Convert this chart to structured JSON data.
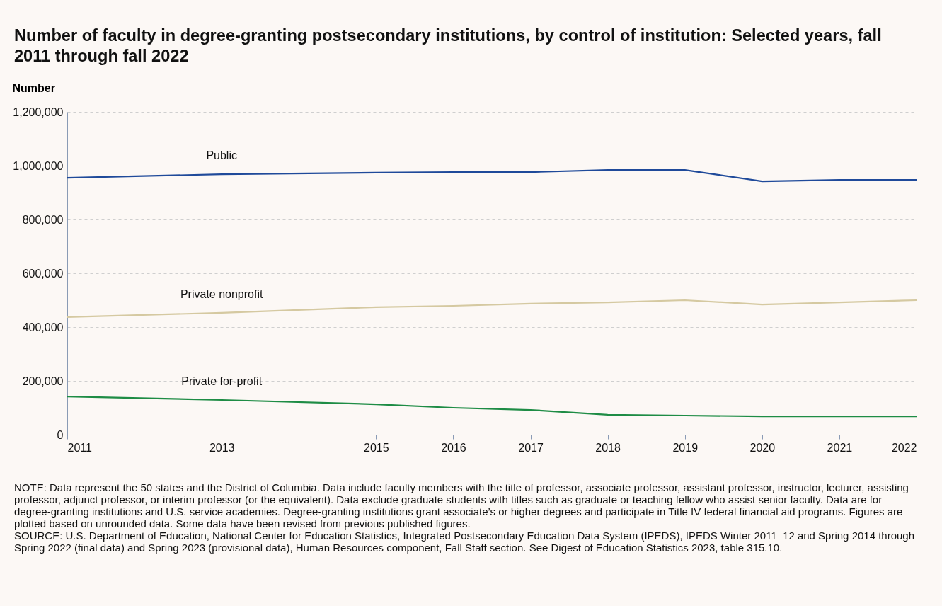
{
  "chart_data": {
    "type": "line",
    "title": "Number of faculty in degree-granting postsecondary institutions, by control of institution: Selected years, fall 2011 through fall 2022",
    "ylabel": "Number",
    "x": [
      2011,
      2013,
      2015,
      2016,
      2017,
      2018,
      2019,
      2020,
      2021,
      2022
    ],
    "series": [
      {
        "name": "Public",
        "color": "#1f4a9a",
        "values": [
          955000,
          968000,
          974000,
          976000,
          976000,
          984000,
          984000,
          942000,
          947000,
          947000
        ]
      },
      {
        "name": "Private nonprofit",
        "color": "#d5c9a1",
        "values": [
          437000,
          453000,
          474000,
          479000,
          487000,
          492000,
          500000,
          484000,
          492000,
          500000
        ]
      },
      {
        "name": "Private for-profit",
        "color": "#1e8c45",
        "values": [
          142000,
          129000,
          113000,
          100000,
          92000,
          74000,
          71000,
          68000,
          68000,
          68000
        ]
      }
    ],
    "xlim": [
      2011,
      2022
    ],
    "xticks": [
      2011,
      2013,
      2015,
      2016,
      2017,
      2018,
      2019,
      2020,
      2021,
      2022
    ],
    "ylim": [
      0,
      1200000
    ],
    "yticks": [
      0,
      {
        "value": 200000,
        "label": "200,000"
      },
      {
        "value": 400000,
        "label": "400,000"
      },
      {
        "value": 600000,
        "label": "600,000"
      },
      {
        "value": 800000,
        "label": "800,000"
      },
      {
        "value": 1000000,
        "label": "1,000,000"
      },
      {
        "value": 1200000,
        "label": "1,200,000"
      }
    ],
    "grid": "y",
    "legend": false,
    "marker": "none",
    "line_style": "solid",
    "annotations": [
      "NOTE: Data represent the 50 states and the District of Columbia. Data include faculty members with the title of professor, associate professor, assistant professor, instructor, lecturer, assisting professor, adjunct professor, or interim professor (or the equivalent). Data exclude graduate students with titles such as graduate or teaching fellow who assist senior faculty. Data are for degree-granting institutions and U.S. service academies. Degree-granting institutions grant associate’s or higher degrees and participate in Title IV federal financial aid programs. Figures are plotted based on unrounded data. Some data have been revised from previous published figures.",
      "SOURCE: U.S. Department of Education, National Center for Education Statistics, Integrated Postsecondary Education Data System (IPEDS), IPEDS Winter 2011–12 and Spring 2014 through Spring 2022 (final data) and Spring 2023 (provisional data), Human Resources component, Fall Staff section. See Digest of Education Statistics 2023, table 315.10."
    ]
  }
}
